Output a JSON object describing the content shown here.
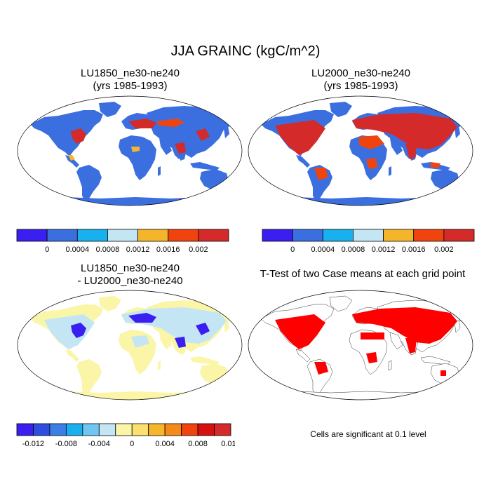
{
  "title": "JJA GRAINC (kgC/m^2)",
  "panels": [
    {
      "title_line1": "LU1850_ne30-ne240",
      "title_line2": "(yrs 1985-1993)"
    },
    {
      "title_line1": "LU2000_ne30-ne240",
      "title_line2": "(yrs 1985-1993)"
    },
    {
      "title_line1": "LU1850_ne30-ne240",
      "title_line2": "- LU2000_ne30-ne240"
    },
    {
      "title_line1": "T-Test of two Case means at each grid point",
      "title_line2": ""
    }
  ],
  "colorbar_abs": {
    "colors": [
      "#3b1ef0",
      "#3b6fe0",
      "#19b0f0",
      "#c4e6f4",
      "#f5b52a",
      "#f0440f",
      "#d42a2a"
    ],
    "labels": [
      "0",
      "0.0004",
      "0.0008",
      "0.0012",
      "0.0016",
      "0.002"
    ]
  },
  "colorbar_diff": {
    "colors": [
      "#3b1ef0",
      "#2f4ee0",
      "#3b7fe6",
      "#19b0f0",
      "#6fc6f0",
      "#c4e6f4",
      "#fbf5a8",
      "#fbe070",
      "#f7b52a",
      "#f58a1a",
      "#f0440f",
      "#d60f0f",
      "#d42a2a"
    ],
    "labels": [
      "-0.012",
      "-0.008",
      "-0.004",
      "0",
      "0.004",
      "0.008",
      "0.012"
    ]
  },
  "map_colors": {
    "ocean": "#ffffff",
    "land_abs": "#3b6fe0",
    "hot": "#d42a2a",
    "warm": "#f0440f",
    "mid": "#f5b52a",
    "land_diff": "#fbf5a8",
    "diff_light": "#c4e6f4",
    "diff_deep": "#3b1ef0",
    "ttest_sig": "#ff0000"
  },
  "footnote": "Cells are significant at 0.1 level"
}
